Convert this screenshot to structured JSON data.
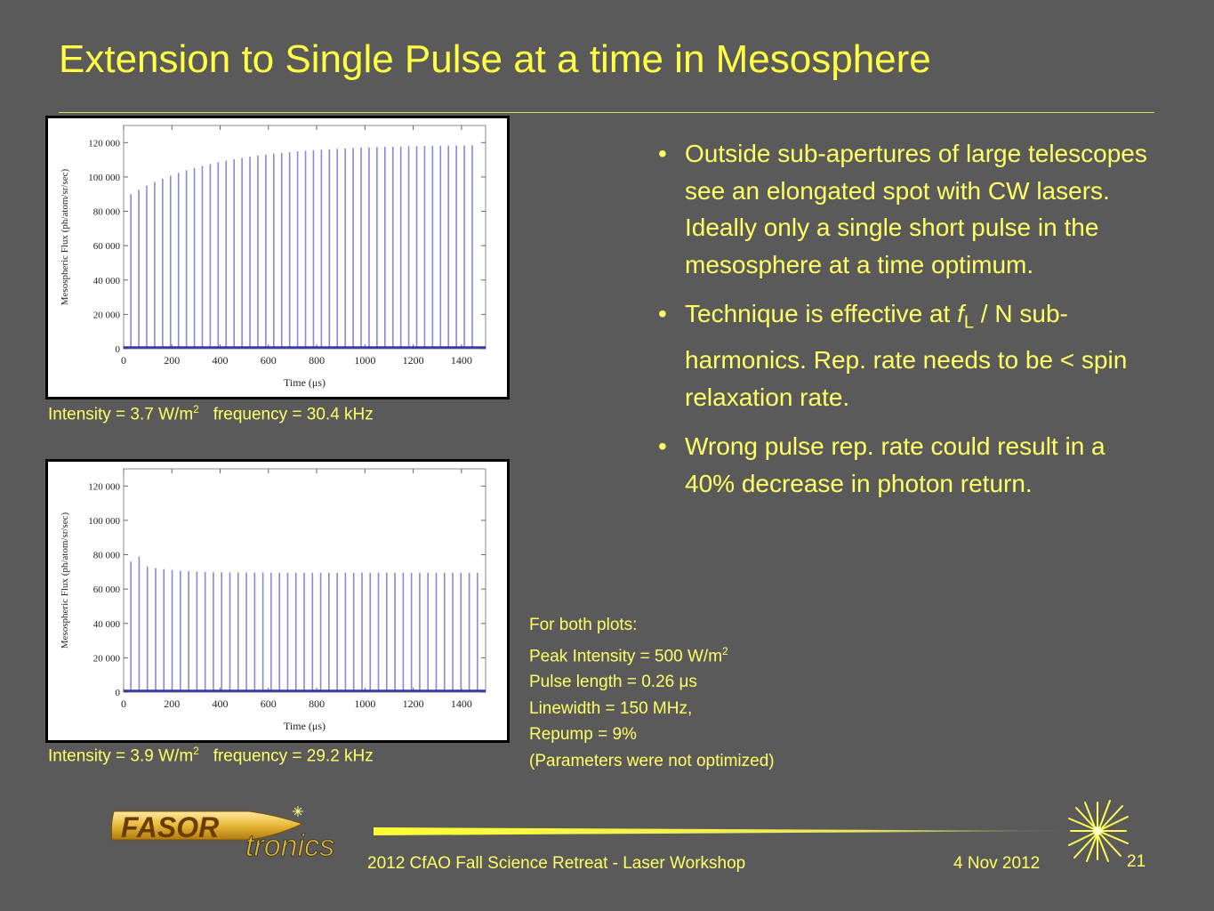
{
  "slide": {
    "title": "Extension to Single Pulse at a time in Mesosphere",
    "bullets": [
      {
        "text_before": "Outside sub-apertures of large telescopes see an elongated spot with CW lasers. Ideally only a single short pulse in the mesosphere at a time optimum.",
        "italic": "",
        "sub": "",
        "text_after": ""
      },
      {
        "text_before": "Technique is effective at ",
        "italic": "f",
        "sub": "L",
        "text_after": " / N sub-harmonics.  Rep. rate needs to be < spin relaxation rate."
      },
      {
        "text_before": "Wrong pulse rep. rate could result in a 40% decrease in photon return.",
        "italic": "",
        "sub": "",
        "text_after": ""
      }
    ],
    "bullet_glyph": "•",
    "params": {
      "line1": "For both plots:",
      "line2_pre": "Peak Intensity = 500 W/m",
      "line2_sup": "2",
      "line3": "Pulse length = 0.26 μs",
      "line4": "Linewidth = 150 MHz,",
      "line5": "Repump = 9%",
      "line6": "(Parameters were not optimized)"
    },
    "footer": {
      "event": "2012 CfAO Fall Science Retreat - Laser Workshop",
      "date": "4 Nov 2012",
      "page": "21"
    },
    "logo": {
      "word1": "FASOR",
      "word2": "tronics"
    },
    "colors": {
      "background": "#5a5a5a",
      "text": "#ffff66",
      "pulse": "#8888dd",
      "baseline": "#3333aa"
    }
  },
  "chart_data": [
    {
      "type": "bar",
      "caption": {
        "intensity_pre": "Intensity = 3.7 W/m",
        "intensity_sup": "2",
        "frequency": "frequency = 30.4 kHz"
      },
      "xlabel": "Time (μs)",
      "ylabel": "Mesospheric Flux (ph/atom/sr/sec)",
      "xlim": [
        0,
        1500
      ],
      "ylim": [
        0,
        130000
      ],
      "xticks": [
        "0",
        "200",
        "400",
        "600",
        "800",
        "1000",
        "1200",
        "1400"
      ],
      "yticks": [
        "0",
        "20 000",
        "40 000",
        "60 000",
        "80 000",
        "100 000",
        "120 000"
      ],
      "pulse_count": 44,
      "pulse_period_us": 32.9,
      "first_pulse_us": 30,
      "peak_start": 90000,
      "peak_end": 119000,
      "trend": "rising"
    },
    {
      "type": "bar",
      "caption": {
        "intensity_pre": "Intensity = 3.9 W/m",
        "intensity_sup": "2",
        "frequency": "frequency = 29.2 kHz"
      },
      "xlabel": "Time (μs)",
      "ylabel": "Mesospheric Flux (ph/atom/sr/sec)",
      "xlim": [
        0,
        1500
      ],
      "ylim": [
        0,
        130000
      ],
      "xticks": [
        "0",
        "200",
        "400",
        "600",
        "800",
        "1000",
        "1200",
        "1400"
      ],
      "yticks": [
        "0",
        "20 000",
        "40 000",
        "60 000",
        "80 000",
        "100 000",
        "120 000"
      ],
      "pulse_count": 43,
      "pulse_period_us": 34.2,
      "first_pulse_us": 30,
      "peak_start": 76000,
      "peak_end": 69500,
      "peak_second": 79000,
      "trend": "falling"
    }
  ]
}
